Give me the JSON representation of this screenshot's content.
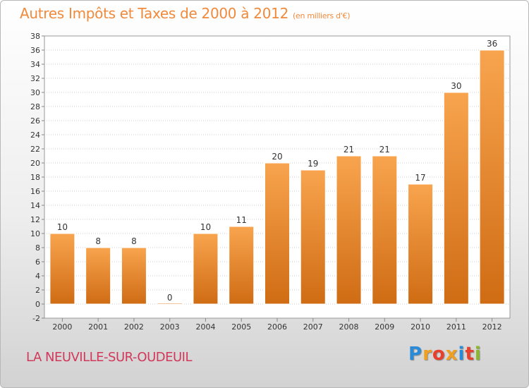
{
  "title": "Autres Impôts et Taxes de 2000 à 2012",
  "unit": "(en milliers d'€)",
  "commune": "LA NEUVILLE-SUR-OUDEUIL",
  "brand": {
    "letters": [
      "P",
      "r",
      "o",
      "x",
      "i",
      "t",
      "i"
    ],
    "colors": [
      "#2a8bd8",
      "#f0a020",
      "#e8402c",
      "#f0a020",
      "#2a8bd8",
      "#e8402c",
      "#8ab82a"
    ]
  },
  "chart_data": {
    "type": "bar",
    "title": "Autres Impôts et Taxes de 2000 à 2012",
    "categories": [
      "2000",
      "2001",
      "2002",
      "2003",
      "2004",
      "2005",
      "2006",
      "2007",
      "2008",
      "2009",
      "2010",
      "2011",
      "2012"
    ],
    "values": [
      10,
      8,
      8,
      0,
      10,
      11,
      20,
      19,
      21,
      21,
      17,
      30,
      36
    ],
    "data_labels": [
      "10",
      "8",
      "8",
      "0",
      "10",
      "11",
      "20",
      "19",
      "21",
      "21",
      "17",
      "30",
      "36"
    ],
    "ylim": [
      -2,
      38
    ],
    "y_ticks": [
      "-2",
      "0",
      "2",
      "4",
      "6",
      "8",
      "10",
      "12",
      "14",
      "16",
      "18",
      "20",
      "22",
      "24",
      "26",
      "28",
      "30",
      "32",
      "34",
      "36",
      "38"
    ],
    "grid": true,
    "bar_color": "#f0922e"
  }
}
